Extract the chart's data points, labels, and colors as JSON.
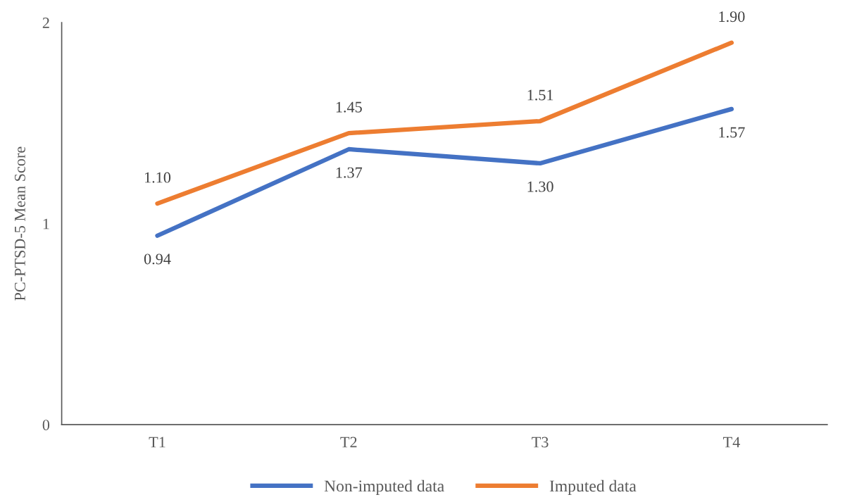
{
  "chart_data": {
    "type": "line",
    "ylabel": "PC-PTSD-5 Mean Score",
    "categories": [
      "T1",
      "T2",
      "T3",
      "T4"
    ],
    "series": [
      {
        "name": "Non-imputed data",
        "color": "#4472c4",
        "values": [
          0.94,
          1.37,
          1.3,
          1.57
        ],
        "value_labels": [
          "0.94",
          "1.37",
          "1.30",
          "1.57"
        ]
      },
      {
        "name": "Imputed data",
        "color": "#ed7d31",
        "values": [
          1.1,
          1.45,
          1.51,
          1.9
        ],
        "value_labels": [
          "1.10",
          "1.45",
          "1.51",
          "1.90"
        ]
      }
    ],
    "ylim": [
      0,
      2
    ],
    "yticks": [
      0,
      1,
      2
    ],
    "grid": false,
    "legend": "bottom",
    "marker": "none",
    "line_style": "solid"
  }
}
